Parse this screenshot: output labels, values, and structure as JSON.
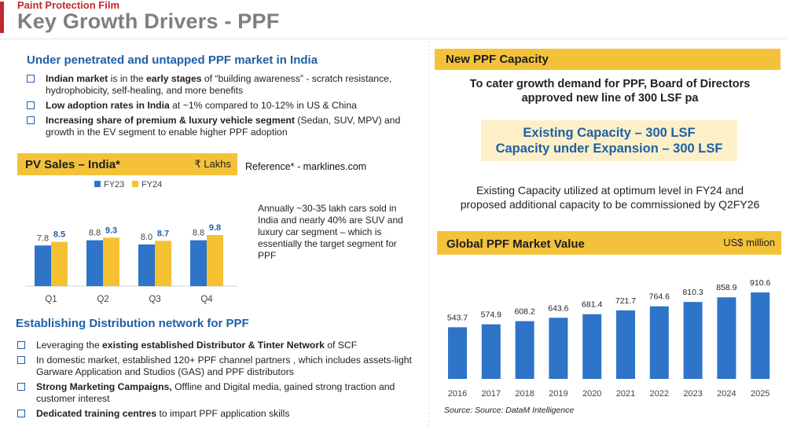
{
  "header": {
    "kicker": "Paint Protection Film",
    "title": "Key Growth Drivers - PPF"
  },
  "market": {
    "title": "Under penetrated and untapped PPF market in India",
    "bullets": [
      {
        "bold": "Indian market",
        "text1": " is in the ",
        "bold2": "early stages",
        "text2": " of “building awareness” - scratch resistance, hydrophobicity, self-healing, and more benefits"
      },
      {
        "bold": "Low adoption rates in India",
        "text1": " at  ~1% compared to 10-12% in US & China"
      },
      {
        "bold": "Increasing share of premium & luxury vehicle segment",
        "text1": " (Sedan, SUV, MPV) and growth in the EV segment to enable higher PPF adoption"
      }
    ]
  },
  "pv": {
    "title": "PV Sales – India*",
    "unit": "₹ Lakhs",
    "reference": "Reference* - marklines.com",
    "note": "Annually ~30-35 lakh cars sold in India and nearly 40% are SUV and luxury car segment – which is essentially the target segment for PPF"
  },
  "distribution": {
    "title": "Establishing Distribution network for PPF",
    "bullets": [
      {
        "pre": "Leveraging the ",
        "bold": "existing established Distributor & Tinter Network",
        "post": " of SCF"
      },
      {
        "pre": "In domestic market, established 120+ PPF channel partners , which includes assets-light  Garware Application and Studios (GAS) and PPF distributors",
        "bold": "",
        "post": ""
      },
      {
        "pre": "",
        "bold": "Strong Marketing Campaigns,",
        "post": " Offline and Digital media, gained strong traction and customer interest"
      },
      {
        "pre": "",
        "bold": "Dedicated training centres",
        "post": " to impart PPF application skills"
      }
    ]
  },
  "capacity": {
    "title": "New PPF Capacity",
    "cater_line1": "To cater growth demand for PPF, Board of Directors",
    "cater_line2": "approved new line of 300 LSF pa",
    "existing_capacity": "Existing  Capacity – 300 LSF",
    "expansion_capacity": "Capacity under Expansion – 300 LSF",
    "utilized_line1": "Existing Capacity utilized at optimum level in FY24 and",
    "utilized_line2": "proposed additional capacity to be commissioned by Q2FY26"
  },
  "global": {
    "title": "Global PPF Market Value",
    "unit": "US$ million",
    "source": "Source:  Source: DataM Intelligence"
  },
  "colors": {
    "fy23": "#2e74c8",
    "fy24": "#f5c133",
    "accent_red": "#c0282d",
    "heading_blue": "#1f5fa6"
  },
  "chart_data": [
    {
      "type": "bar",
      "categories": [
        "Q1",
        "Q2",
        "Q3",
        "Q4"
      ],
      "series": [
        {
          "name": "FY23",
          "values": [
            7.8,
            8.8,
            8.0,
            8.8
          ]
        },
        {
          "name": "FY24",
          "values": [
            8.5,
            9.3,
            8.7,
            9.8
          ]
        }
      ],
      "legend": "top"
    },
    {
      "type": "bar",
      "categories": [
        "2016",
        "2017",
        "2018",
        "2019",
        "2020",
        "2021",
        "2022",
        "2023",
        "2024",
        "2025"
      ],
      "values": [
        543.7,
        574.9,
        608.2,
        643.6,
        681.4,
        721.7,
        764.6,
        810.3,
        858.9,
        910.6
      ]
    }
  ]
}
